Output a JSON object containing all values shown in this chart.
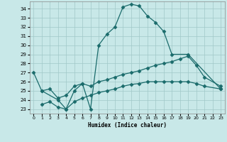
{
  "xlabel": "Humidex (Indice chaleur)",
  "bg_color": "#c8e8e8",
  "grid_color": "#a0c8c8",
  "line_color": "#1a6b6b",
  "ylim": [
    22.5,
    34.8
  ],
  "xlim": [
    -0.5,
    23.5
  ],
  "yticks": [
    23,
    24,
    25,
    26,
    27,
    28,
    29,
    30,
    31,
    32,
    33,
    34
  ],
  "xticks": [
    0,
    1,
    2,
    3,
    4,
    5,
    6,
    7,
    8,
    9,
    10,
    11,
    12,
    13,
    14,
    15,
    16,
    17,
    18,
    19,
    20,
    21,
    22,
    23
  ],
  "line1_x": [
    0,
    1,
    3,
    4,
    5,
    6,
    7,
    8,
    9,
    10,
    11,
    12,
    13,
    14,
    15,
    16,
    17,
    19,
    23
  ],
  "line1_y": [
    27.0,
    25.0,
    24.0,
    23.0,
    25.0,
    25.8,
    23.0,
    30.0,
    31.2,
    32.0,
    34.2,
    34.5,
    34.3,
    33.2,
    32.5,
    31.5,
    29.0,
    29.0,
    25.2
  ],
  "line2_x": [
    1,
    2,
    3,
    4,
    5,
    6,
    7,
    8,
    9,
    10,
    11,
    12,
    13,
    14,
    15,
    16,
    17,
    18,
    19,
    20,
    21,
    23
  ],
  "line2_y": [
    25.0,
    25.2,
    24.2,
    24.5,
    25.5,
    25.8,
    25.5,
    26.0,
    26.2,
    26.5,
    26.8,
    27.0,
    27.2,
    27.5,
    27.8,
    28.0,
    28.2,
    28.5,
    28.8,
    27.8,
    26.5,
    25.5
  ],
  "line3_x": [
    1,
    2,
    3,
    4,
    5,
    6,
    7,
    8,
    9,
    10,
    11,
    12,
    13,
    14,
    15,
    16,
    17,
    18,
    19,
    20,
    21,
    23
  ],
  "line3_y": [
    23.5,
    23.8,
    23.2,
    23.0,
    23.8,
    24.2,
    24.5,
    24.8,
    25.0,
    25.2,
    25.5,
    25.7,
    25.8,
    26.0,
    26.0,
    26.0,
    26.0,
    26.0,
    26.0,
    25.8,
    25.5,
    25.2
  ]
}
